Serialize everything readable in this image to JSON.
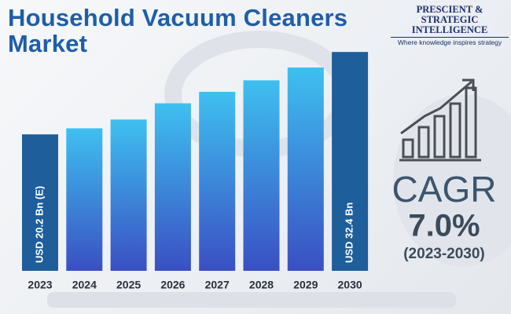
{
  "chart_data": {
    "type": "bar",
    "title": "Household Vacuum Cleaners Market",
    "categories": [
      "2023",
      "2024",
      "2025",
      "2026",
      "2027",
      "2028",
      "2029",
      "2030"
    ],
    "values": [
      20.2,
      21.1,
      22.4,
      24.8,
      26.5,
      28.2,
      30.1,
      32.4
    ],
    "value_labels": [
      "USD 20.2 Bn (E)",
      null,
      null,
      null,
      null,
      null,
      null,
      "USD 32.4 Bn"
    ],
    "colors_top": [
      "#1e5e9a",
      "#3ec0f0",
      "#3ec0f0",
      "#3ec0f0",
      "#3ec0f0",
      "#3ec0f0",
      "#3ec0f0",
      "#1e5e9a"
    ],
    "colors_bottom": [
      "#1e5e9a",
      "#3a4fc2",
      "#3a4fc2",
      "#3a4fc2",
      "#3a4fc2",
      "#3a4fc2",
      "#3a4fc2",
      "#1e5e9a"
    ],
    "ylim": [
      0,
      38
    ],
    "cagr": {
      "label": "CAGR",
      "value": "7.0%",
      "period": "(2023-2030)"
    },
    "logo": {
      "line1": "PRESCIENT & STRATEGIC",
      "line2": "INTELLIGENCE",
      "tagline": "Where knowledge inspires strategy"
    }
  }
}
